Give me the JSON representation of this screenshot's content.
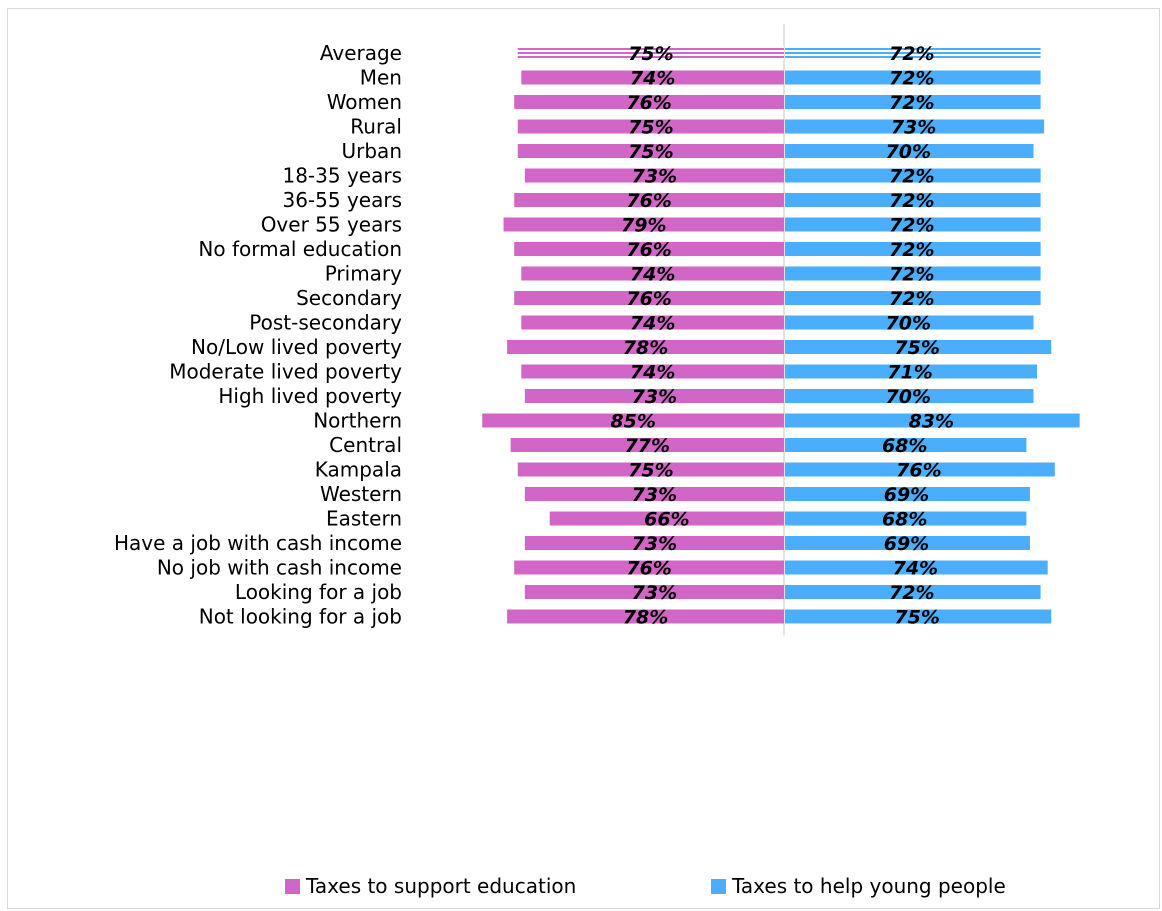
{
  "colors": {
    "education": "#d166c6",
    "young": "#4aaefc",
    "axis": "#d9d9d9"
  },
  "legend": {
    "education_label": "Taxes to support education",
    "young_label": "Taxes to help young people"
  },
  "chart_data": {
    "type": "bar",
    "orientation": "horizontal-diverging",
    "title": "",
    "xlabel": "",
    "ylabel": "",
    "grid": false,
    "legend_position": "bottom",
    "value_suffix": "%",
    "categories": [
      "Average",
      "Men",
      "Women",
      "Rural",
      "Urban",
      "18-35 years",
      "36-55 years",
      "Over 55 years",
      "No formal education",
      "Primary",
      "Secondary",
      "Post-secondary",
      "No/Low lived poverty",
      "Moderate lived poverty",
      "High lived poverty",
      "Northern",
      "Central",
      "Kampala",
      "Western",
      "Eastern",
      "Have a job with cash income",
      "No job with cash income",
      "Looking for a job",
      "Not looking for a job"
    ],
    "groups": [
      [
        "Average"
      ],
      [
        "Men",
        "Women"
      ],
      [
        "Rural",
        "Urban"
      ],
      [
        "18-35 years",
        "36-55 years",
        "Over 55 years"
      ],
      [
        "No formal education",
        "Primary",
        "Secondary",
        "Post-secondary"
      ],
      [
        "No/Low lived poverty",
        "Moderate lived poverty",
        "High lived poverty"
      ],
      [
        "Northern",
        "Central",
        "Kampala",
        "Western",
        "Eastern"
      ],
      [
        "Have a job with cash income",
        "No job with cash income"
      ],
      [
        "Looking for a job",
        "Not looking for a job"
      ]
    ],
    "series": [
      {
        "name": "Taxes to support education",
        "side": "left",
        "values": [
          75,
          74,
          76,
          75,
          75,
          73,
          76,
          79,
          76,
          74,
          76,
          74,
          78,
          74,
          73,
          85,
          77,
          75,
          73,
          66,
          73,
          76,
          73,
          78
        ]
      },
      {
        "name": "Taxes to help young people",
        "side": "right",
        "values": [
          72,
          72,
          72,
          73,
          70,
          72,
          72,
          72,
          72,
          72,
          72,
          70,
          75,
          71,
          70,
          83,
          68,
          76,
          69,
          68,
          69,
          74,
          72,
          75
        ]
      }
    ],
    "highlighted_category": "Average",
    "xlim": [
      0,
      100
    ]
  }
}
